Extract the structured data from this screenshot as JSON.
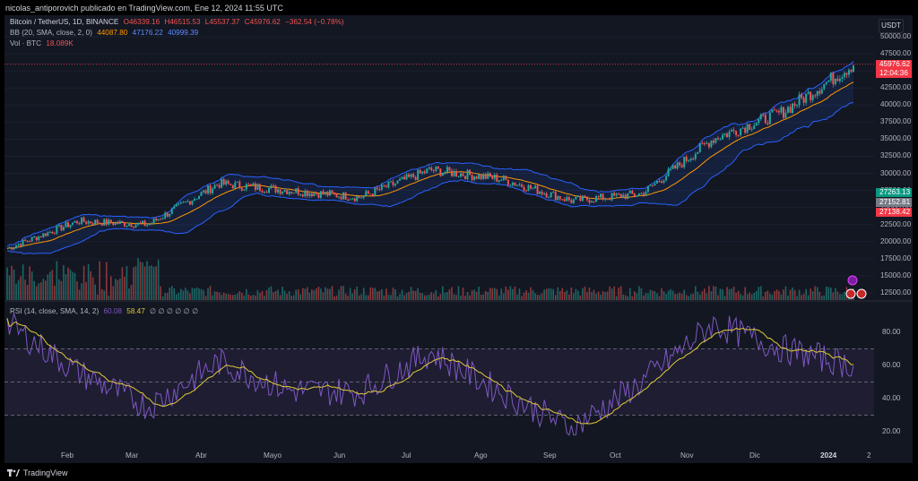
{
  "header": {
    "published": "nicolas_antiporovich publicado en TradingView.com, Ene 12, 2024 11:55 UTC"
  },
  "legend": {
    "symbol": "Bitcoin / TetherUS, 1D, BINANCE",
    "ohlc": {
      "o": "O46339.16",
      "h": "H46515.53",
      "l": "L45537.37",
      "c": "C45976.62",
      "chg": "−362.54 (−0.78%)"
    },
    "bb": {
      "label": "BB (20, SMA, close, 2, 0)",
      "basis": "44087.80",
      "upper": "47176.22",
      "lower": "40999.39"
    },
    "vol": {
      "label": "Vol · BTC",
      "value": "18.089K"
    },
    "rsi": {
      "label": "RSI (14, close, SMA, 14, 2)",
      "value": "60.08",
      "ma": "58.47",
      "extras": "∅ ∅ ∅ ∅ ∅ ∅"
    }
  },
  "axis": {
    "unit": "USDT",
    "price_ticks": [
      "50000.00",
      "47500.00",
      "45000.00",
      "42500.00",
      "40000.00",
      "37500.00",
      "35000.00",
      "32500.00",
      "30000.00",
      "27500.00",
      "25000.00",
      "22500.00",
      "20000.00",
      "17500.00",
      "15000.00",
      "12500.00"
    ],
    "rsi_ticks": [
      "80.00",
      "60.00",
      "40.00",
      "20.00"
    ],
    "months": [
      "Feb",
      "Mar",
      "Abr",
      "Mayo",
      "Jun",
      "Jul",
      "Ago",
      "Sep",
      "Oct",
      "Nov",
      "Dic",
      "2024",
      "2"
    ]
  },
  "price_tags": {
    "last": "45976.62",
    "countdown": "12:04:36",
    "tag_upper": "27263.13",
    "tag_mid": "27152.81",
    "tag_lower": "27138.42"
  },
  "colors": {
    "up": "#26a69a",
    "down": "#ef5350",
    "bb_fill": "#2962ff",
    "bb_basis": "#ff9800",
    "rsi_line": "#7e57c2",
    "rsi_ma": "#e0c93a",
    "last_price": "#f23645"
  },
  "chart_data": {
    "type": "line",
    "title": "Bitcoin / TetherUS, 1D, BINANCE",
    "x": [
      "2023-01",
      "2023-02",
      "2023-03",
      "2023-04",
      "2023-05",
      "2023-06",
      "2023-07",
      "2023-08",
      "2023-09",
      "2023-10",
      "2023-11",
      "2023-12",
      "2024-01"
    ],
    "series": [
      {
        "name": "Bitcoin / TetherUS",
        "values": [
          19000,
          23000,
          22500,
          28500,
          27500,
          26500,
          30500,
          29200,
          26000,
          27000,
          35000,
          39000,
          45976.62
        ]
      },
      {
        "name": "RSI",
        "values": [
          85,
          56,
          35,
          62,
          45,
          44,
          68,
          44,
          22,
          50,
          85,
          70,
          60.08
        ]
      }
    ],
    "ylim": [
      12500,
      50000
    ]
  },
  "brand": {
    "name": "TradingView"
  }
}
